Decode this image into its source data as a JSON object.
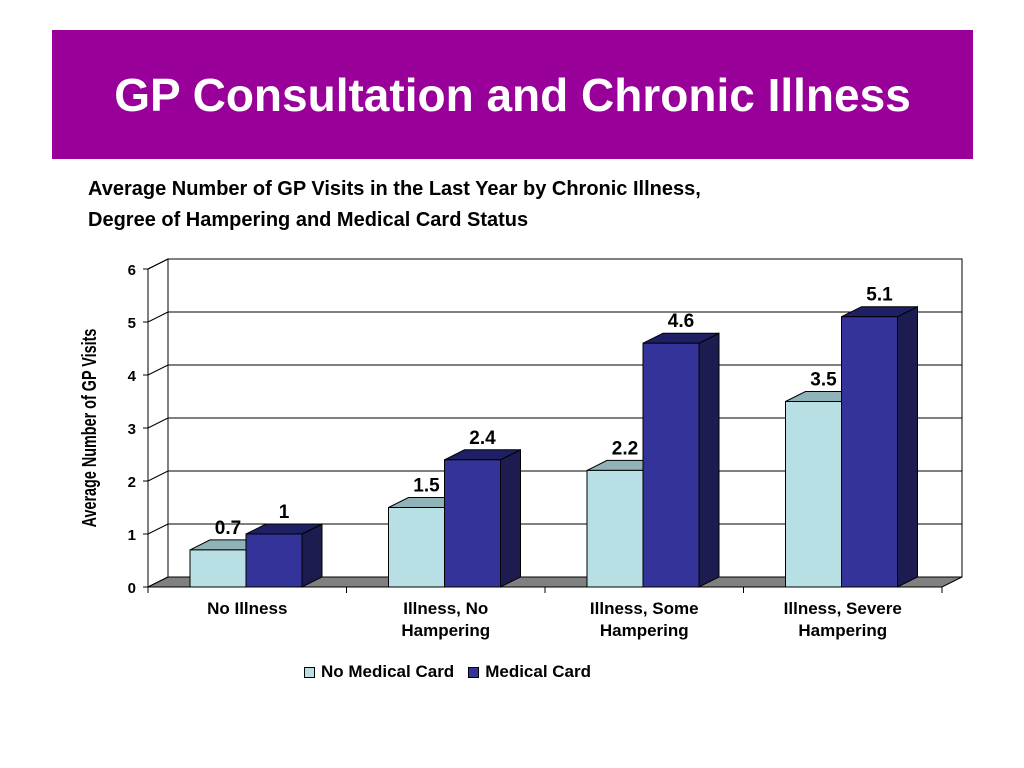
{
  "slide": {
    "title": "GP Consultation and Chronic Illness",
    "subtitle_line1": "Average Number of GP Visits in the Last Year by Chronic Illness,",
    "subtitle_line2": "Degree of Hampering and Medical Card Status",
    "title_bg": "#990099"
  },
  "chart_data": {
    "type": "bar",
    "three_d": true,
    "ylabel": "Average Number of GP Visits",
    "ylim": [
      0,
      6
    ],
    "yticks": [
      "0",
      "1",
      "2",
      "3",
      "4",
      "5",
      "6"
    ],
    "grid": true,
    "legend_position": "bottom",
    "categories": [
      [
        "No Illness"
      ],
      [
        "Illness, No",
        "Hampering"
      ],
      [
        "Illness, Some",
        "Hampering"
      ],
      [
        "Illness, Severe",
        "Hampering"
      ]
    ],
    "series": [
      {
        "name": "No Medical Card",
        "values": [
          0.7,
          1.5,
          2.2,
          3.5
        ],
        "labels": [
          "0.7",
          "1.5",
          "2.2",
          "3.5"
        ],
        "color": "#b8dfe3",
        "top_color": "#8fb3b7",
        "side_color": "#6e9196"
      },
      {
        "name": "Medical Card",
        "values": [
          1,
          2.4,
          4.6,
          5.1
        ],
        "labels": [
          "1",
          "2.4",
          "4.6",
          "5.1"
        ],
        "color": "#333399",
        "top_color": "#1f1f66",
        "side_color": "#1c1c50"
      }
    ]
  }
}
